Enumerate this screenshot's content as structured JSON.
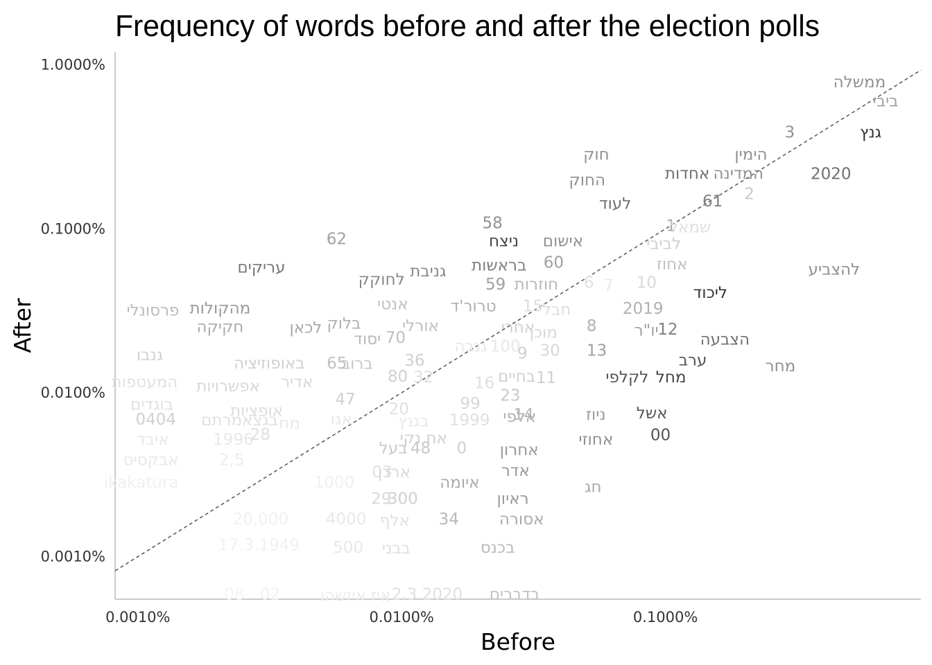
{
  "chart_data": {
    "type": "scatter",
    "title": "Frequency of words before and after the election polls",
    "xlabel": "Before",
    "ylabel": "After",
    "x_scale": "log",
    "y_scale": "log",
    "xlim": [
      8.2e-06,
      0.0093
    ],
    "ylim": [
      5.5e-06,
      0.012
    ],
    "x_ticks": [
      {
        "value": 1e-05,
        "label": "0.0010%"
      },
      {
        "value": 0.0001,
        "label": "0.0100%"
      },
      {
        "value": 0.001,
        "label": "0.1000%"
      }
    ],
    "y_ticks": [
      {
        "value": 0.01,
        "label": "1.0000%"
      },
      {
        "value": 0.001,
        "label": "0.1000%"
      },
      {
        "value": 0.0001,
        "label": "0.0100%"
      },
      {
        "value": 1e-05,
        "label": "0.0010%"
      }
    ],
    "reference_line": "y = x (dashed)",
    "grid": false,
    "color_encoding": "darker words are more significant",
    "points": [
      {
        "word": "ממשלה",
        "x": 0.00544,
        "y": 0.00791,
        "color": "#909090"
      },
      {
        "word": "ביבי",
        "x": 0.00683,
        "y": 0.00603,
        "color": "#a0a0a0"
      },
      {
        "word": "גנץ",
        "x": 0.006,
        "y": 0.0039,
        "color": "#333333"
      },
      {
        "word": "3",
        "x": 0.00296,
        "y": 0.0039,
        "color": "#909090"
      },
      {
        "word": "2020",
        "x": 0.00424,
        "y": 0.00218,
        "color": "#707070"
      },
      {
        "word": "הימין",
        "x": 0.00211,
        "y": 0.00286,
        "color": "#909090"
      },
      {
        "word": "המדינה",
        "x": 0.00189,
        "y": 0.00219,
        "color": "#909090"
      },
      {
        "word": "2",
        "x": 0.00208,
        "y": 0.00164,
        "color": "#c8c8c8"
      },
      {
        "word": "אחדות",
        "x": 0.00121,
        "y": 0.00219,
        "color": "#707070"
      },
      {
        "word": "61",
        "x": 0.00151,
        "y": 0.00148,
        "color": "#808080"
      },
      {
        "word": "חוק",
        "x": 0.000547,
        "y": 0.00286,
        "color": "#909090"
      },
      {
        "word": "החוק",
        "x": 0.000505,
        "y": 0.00199,
        "color": "#909090"
      },
      {
        "word": "לעוד",
        "x": 0.000645,
        "y": 0.00143,
        "color": "#707070"
      },
      {
        "word": "1",
        "x": 0.00105,
        "y": 0.00105,
        "color": "#a8a8a8"
      },
      {
        "word": "שמאל",
        "x": 0.00124,
        "y": 0.00103,
        "color": "#e0e0e0"
      },
      {
        "word": "לביבי",
        "x": 0.000985,
        "y": 0.000815,
        "color": "#d0d0d0"
      },
      {
        "word": "אחוז",
        "x": 0.00106,
        "y": 0.000612,
        "color": "#c0c0c0"
      },
      {
        "word": "להצביע",
        "x": 0.00436,
        "y": 0.000568,
        "color": "#909090"
      },
      {
        "word": "ליכוד",
        "x": 0.00148,
        "y": 0.00041,
        "color": "#333333"
      },
      {
        "word": "10",
        "x": 0.000848,
        "y": 0.000471,
        "color": "#d8d8d8"
      },
      {
        "word": "2019",
        "x": 0.000822,
        "y": 0.000328,
        "color": "#b0b0b0"
      },
      {
        "word": "12",
        "x": 0.00102,
        "y": 0.000245,
        "color": "#808080"
      },
      {
        "word": "יו\"ר",
        "x": 0.000847,
        "y": 0.000241,
        "color": "#a0a0a0"
      },
      {
        "word": "הצבעה",
        "x": 0.00168,
        "y": 0.000212,
        "color": "#707070"
      },
      {
        "word": "ערב",
        "x": 0.00127,
        "y": 0.000159,
        "color": "#555555"
      },
      {
        "word": "מחר",
        "x": 0.00273,
        "y": 0.000146,
        "color": "#909090"
      },
      {
        "word": "מחל",
        "x": 0.00105,
        "y": 0.000125,
        "color": "#444444"
      },
      {
        "word": "לקלפי",
        "x": 0.000716,
        "y": 0.000125,
        "color": "#555555"
      },
      {
        "word": "8",
        "x": 0.000525,
        "y": 0.000257,
        "color": "#b0b0b0"
      },
      {
        "word": "13",
        "x": 0.000549,
        "y": 0.000182,
        "color": "#a0a0a0"
      },
      {
        "word": "30",
        "x": 0.000365,
        "y": 0.000182,
        "color": "#d8d8d8"
      },
      {
        "word": "11",
        "x": 0.000353,
        "y": 0.000124,
        "color": "#d0d0d0"
      },
      {
        "word": "14",
        "x": 0.00029,
        "y": 7.39e-05,
        "color": "#b8b8b8"
      },
      {
        "word": "אשל",
        "x": 0.000889,
        "y": 7.53e-05,
        "color": "#555555"
      },
      {
        "word": "ניוז",
        "x": 0.000545,
        "y": 7.39e-05,
        "color": "#999999"
      },
      {
        "word": "00",
        "x": 0.000958,
        "y": 5.54e-05,
        "color": "#555555"
      },
      {
        "word": "אחוזי",
        "x": 0.000545,
        "y": 5.2e-05,
        "color": "#909090"
      },
      {
        "word": "חג",
        "x": 0.000532,
        "y": 2.68e-05,
        "color": "#aaaaaa"
      },
      {
        "word": "58",
        "x": 0.000221,
        "y": 0.00109,
        "color": "#909090"
      },
      {
        "word": "ניצח",
        "x": 0.000244,
        "y": 0.000848,
        "color": "#444444"
      },
      {
        "word": "אישום",
        "x": 0.000409,
        "y": 0.000848,
        "color": "#909090"
      },
      {
        "word": "60",
        "x": 0.000377,
        "y": 0.000627,
        "color": "#a0a0a0"
      },
      {
        "word": "בראשות",
        "x": 0.000234,
        "y": 0.000603,
        "color": "#808080"
      },
      {
        "word": "59",
        "x": 0.000227,
        "y": 0.000461,
        "color": "#a0a0a0"
      },
      {
        "word": "חוזרות",
        "x": 0.000324,
        "y": 0.000461,
        "color": "#b8b8b8"
      },
      {
        "word": "6",
        "x": 0.000513,
        "y": 0.000471,
        "color": "#e0e0e0"
      },
      {
        "word": "7",
        "x": 0.000609,
        "y": 0.000453,
        "color": "#e8e8e8"
      },
      {
        "word": "15",
        "x": 0.000314,
        "y": 0.000339,
        "color": "#dddddd"
      },
      {
        "word": "חבל",
        "x": 0.000387,
        "y": 0.000323,
        "color": "#dddddd"
      },
      {
        "word": "טרור'ד",
        "x": 0.000187,
        "y": 0.000339,
        "color": "#b0b0b0"
      },
      {
        "word": "אחרי",
        "x": 0.000276,
        "y": 0.000252,
        "color": "#d0d0d0"
      },
      {
        "word": "מוכן",
        "x": 0.000345,
        "y": 0.000234,
        "color": "#d8d8d8"
      },
      {
        "word": "9",
        "x": 0.000287,
        "y": 0.000175,
        "color": "#d0d0d0"
      },
      {
        "word": "100",
        "x": 0.000247,
        "y": 0.000193,
        "color": "#e8e8e8"
      },
      {
        "word": "בחיים",
        "x": 0.000273,
        "y": 0.000126,
        "color": "#d0d0d0"
      },
      {
        "word": "23",
        "x": 0.000258,
        "y": 9.68e-05,
        "color": "#c8c8c8"
      },
      {
        "word": "16",
        "x": 0.000206,
        "y": 0.000115,
        "color": "#e0e0e0"
      },
      {
        "word": "99",
        "x": 0.000182,
        "y": 8.62e-05,
        "color": "#d8d8d8"
      },
      {
        "word": "1999",
        "x": 0.000181,
        "y": 6.83e-05,
        "color": "#e0e0e0"
      },
      {
        "word": "גנבה",
        "x": 0.000183,
        "y": 0.000193,
        "color": "#e8e8e8"
      },
      {
        "word": "אלפי",
        "x": 0.00028,
        "y": 7.17e-05,
        "color": "#b0b0b0"
      },
      {
        "word": "0",
        "x": 0.000169,
        "y": 4.61e-05,
        "color": "#d0d0d0"
      },
      {
        "word": "אחרון",
        "x": 0.000279,
        "y": 4.49e-05,
        "color": "#999999"
      },
      {
        "word": "אדר",
        "x": 0.00027,
        "y": 3.36e-05,
        "color": "#999999"
      },
      {
        "word": "איומה",
        "x": 0.000166,
        "y": 2.85e-05,
        "color": "#aaaaaa"
      },
      {
        "word": "ראיון",
        "x": 0.000264,
        "y": 2.27e-05,
        "color": "#999999"
      },
      {
        "word": "אסורה",
        "x": 0.000285,
        "y": 1.7e-05,
        "color": "#aaaaaa"
      },
      {
        "word": "34",
        "x": 0.000151,
        "y": 1.7e-05,
        "color": "#b8b8b8"
      },
      {
        "word": "בכנס",
        "x": 0.000231,
        "y": 1.14e-05,
        "color": "#bbbbbb"
      },
      {
        "word": "בדברים",
        "x": 0.000268,
        "y": 5.92e-06,
        "color": "#c0c0c0"
      },
      {
        "word": "62",
        "x": 5.67e-05,
        "y": 0.000873,
        "color": "#a0a0a0"
      },
      {
        "word": "עריקים",
        "x": 2.94e-05,
        "y": 0.000585,
        "color": "#777777"
      },
      {
        "word": "לחוקק",
        "x": 8.39e-05,
        "y": 0.000492,
        "color": "#888888"
      },
      {
        "word": "גניבת",
        "x": 0.000126,
        "y": 0.000553,
        "color": "#888888"
      },
      {
        "word": "אנטי",
        "x": 9.25e-05,
        "y": 0.000349,
        "color": "#c0c0c0"
      },
      {
        "word": "אורלי",
        "x": 0.000118,
        "y": 0.000257,
        "color": "#c0c0c0"
      },
      {
        "word": "70",
        "x": 9.48e-05,
        "y": 0.000218,
        "color": "#c0c0c0"
      },
      {
        "word": "יסוד",
        "x": 7.42e-05,
        "y": 0.000214,
        "color": "#b8b8b8"
      },
      {
        "word": "בלוק",
        "x": 6.04e-05,
        "y": 0.000266,
        "color": "#b0b0b0"
      },
      {
        "word": "לכאן",
        "x": 4.33e-05,
        "y": 0.000251,
        "color": "#a8a8a8"
      },
      {
        "word": "36",
        "x": 0.000112,
        "y": 0.000158,
        "color": "#d0d0d0"
      },
      {
        "word": "32",
        "x": 0.000121,
        "y": 0.000125,
        "color": "#e0e0e0"
      },
      {
        "word": "ברוב",
        "x": 6.77e-05,
        "y": 0.000151,
        "color": "#c8c8c8"
      },
      {
        "word": "65",
        "x": 5.68e-05,
        "y": 0.000152,
        "color": "#c0c0c0"
      },
      {
        "word": "80",
        "x": 9.66e-05,
        "y": 0.000126,
        "color": "#d0d0d0"
      },
      {
        "word": "47",
        "x": 6.12e-05,
        "y": 9.17e-05,
        "color": "#d0d0d0"
      },
      {
        "word": "20",
        "x": 9.77e-05,
        "y": 8.01e-05,
        "color": "#e0e0e0"
      },
      {
        "word": "בגנץ",
        "x": 0.000111,
        "y": 6.75e-05,
        "color": "#e8e8e8"
      },
      {
        "word": "אח נקי",
        "x": 0.000121,
        "y": 5.3e-05,
        "color": "#d0d0d0"
      },
      {
        "word": "48",
        "x": 0.000118,
        "y": 4.61e-05,
        "color": "#c8c8c8"
      },
      {
        "word": "בעל",
        "x": 9.29e-05,
        "y": 4.61e-05,
        "color": "#c8c8c8"
      },
      {
        "word": "אגו",
        "x": 5.91e-05,
        "y": 6.91e-05,
        "color": "#e8e8e8"
      },
      {
        "word": "03",
        "x": 8.44e-05,
        "y": 3.3e-05,
        "color": "#e0e0e0"
      },
      {
        "word": "ארדן",
        "x": 9.37e-05,
        "y": 3.3e-05,
        "color": "#d8d8d8"
      },
      {
        "word": "1000",
        "x": 5.55e-05,
        "y": 2.85e-05,
        "color": "#f0f0f0"
      },
      {
        "word": "29",
        "x": 8.37e-05,
        "y": 2.27e-05,
        "color": "#d8d8d8"
      },
      {
        "word": "300",
        "x": 0.000101,
        "y": 2.27e-05,
        "color": "#d0d0d0"
      },
      {
        "word": "4000",
        "x": 6.16e-05,
        "y": 1.7e-05,
        "color": "#e8e8e8"
      },
      {
        "word": "אלף",
        "x": 9.42e-05,
        "y": 1.67e-05,
        "color": "#e0e0e0"
      },
      {
        "word": "500",
        "x": 6.27e-05,
        "y": 1.14e-05,
        "color": "#e8e8e8"
      },
      {
        "word": "בבני",
        "x": 9.54e-05,
        "y": 1.13e-05,
        "color": "#e0e0e0"
      },
      {
        "word": "2.3.2020",
        "x": 0.000125,
        "y": 5.92e-06,
        "color": "#e0e0e0"
      },
      {
        "word": "איז",
        "x": 8.34e-05,
        "y": 5.8e-06,
        "color": "#e8e8e8"
      },
      {
        "word": "איזשהו",
        "x": 6e-05,
        "y": 5.8e-06,
        "color": "#ececec"
      },
      {
        "word": "02",
        "x": 3.17e-05,
        "y": 5.92e-06,
        "color": "#f0f0f0"
      },
      {
        "word": "08",
        "x": 2.32e-05,
        "y": 5.92e-06,
        "color": "#f4f4f4"
      },
      {
        "word": "פרסונלי",
        "x": 1.14e-05,
        "y": 0.00032,
        "color": "#bbbbbb"
      },
      {
        "word": "מהקולות",
        "x": 2.05e-05,
        "y": 0.00033,
        "color": "#999999"
      },
      {
        "word": "חקיקה",
        "x": 2.05e-05,
        "y": 0.000253,
        "color": "#aaaaaa"
      },
      {
        "word": "גנבו",
        "x": 1.11e-05,
        "y": 0.000171,
        "color": "#d0d0d0"
      },
      {
        "word": "באופוזיציה",
        "x": 3.15e-05,
        "y": 0.000152,
        "color": "#d0d0d0"
      },
      {
        "word": "אדיר",
        "x": 4.01e-05,
        "y": 0.000117,
        "color": "#d8d8d8"
      },
      {
        "word": "המעטפות",
        "x": 1.06e-05,
        "y": 0.000117,
        "color": "#e0e0e0"
      },
      {
        "word": "אפשרויות",
        "x": 2.2e-05,
        "y": 0.00011,
        "color": "#d8d8d8"
      },
      {
        "word": "בוגדים",
        "x": 1.13e-05,
        "y": 8.53e-05,
        "color": "#e0e0e0"
      },
      {
        "word": "אופציות",
        "x": 2.82e-05,
        "y": 7.81e-05,
        "color": "#dddddd"
      },
      {
        "word": "0404",
        "x": 1.17e-05,
        "y": 6.91e-05,
        "color": "#d0d0d0"
      },
      {
        "word": "בגצאמרתם",
        "x": 2.43e-05,
        "y": 6.83e-05,
        "color": "#e0e0e0"
      },
      {
        "word": "מח",
        "x": 3.76e-05,
        "y": 6.53e-05,
        "color": "#e8e8e8"
      },
      {
        "word": "איבד",
        "x": 1.14e-05,
        "y": 5.21e-05,
        "color": "#e8e8e8"
      },
      {
        "word": "1996",
        "x": 2.3e-05,
        "y": 5.21e-05,
        "color": "#e8e8e8"
      },
      {
        "word": "28",
        "x": 2.91e-05,
        "y": 5.57e-05,
        "color": "#e0e0e0"
      },
      {
        "word": "2,5",
        "x": 2.27e-05,
        "y": 3.91e-05,
        "color": "#ececec"
      },
      {
        "word": "אבקסיס",
        "x": 1.12e-05,
        "y": 3.91e-05,
        "color": "#e8e8e8"
      },
      {
        "word": "ikakatura",
        "x": 1.03e-05,
        "y": 2.85e-05,
        "color": "#f0f0f0"
      },
      {
        "word": "20,000",
        "x": 2.92e-05,
        "y": 1.7e-05,
        "color": "#f0f0f0"
      },
      {
        "word": "17.3.1949",
        "x": 2.88e-05,
        "y": 1.18e-05,
        "color": "#f0f0f0"
      }
    ]
  }
}
